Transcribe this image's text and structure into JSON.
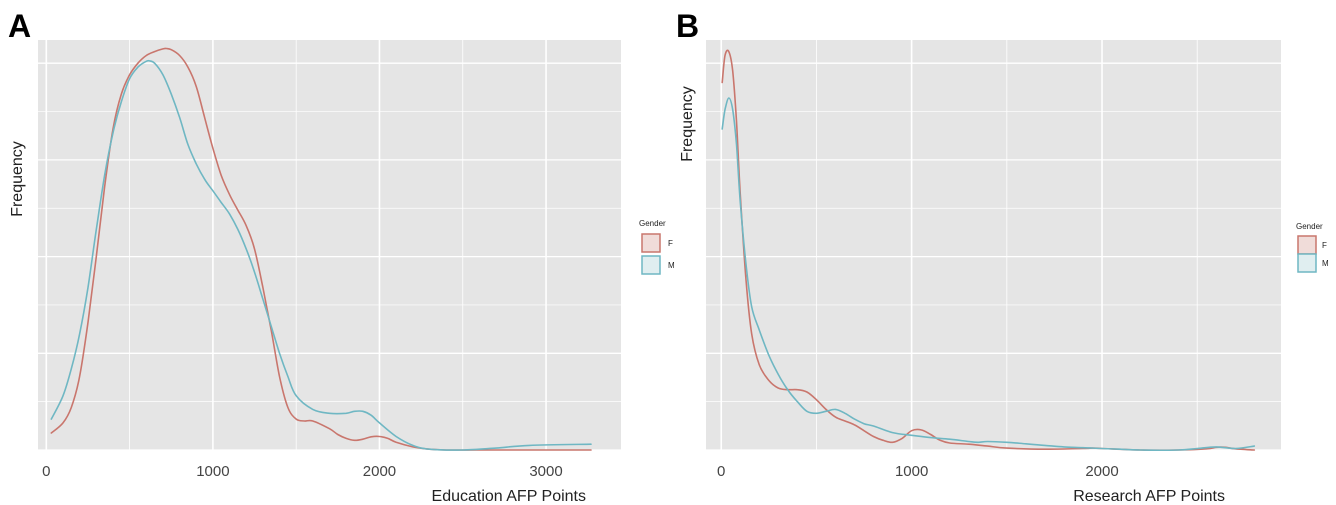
{
  "chart_data": [
    {
      "panel": "A",
      "type": "line",
      "title": "",
      "xlabel": "Education AFP Points",
      "ylabel": "Frequency",
      "xlim": [
        -50,
        3450
      ],
      "ylim": [
        0,
        1.06
      ],
      "xticks": [
        0,
        1000,
        2000,
        3000
      ],
      "y_tick_labels_shown": false,
      "grid": true,
      "legend": {
        "title": "Gender",
        "entries": [
          "F",
          "M"
        ],
        "placement": "right"
      },
      "series": [
        {
          "name": "F",
          "color": "#c9766d",
          "x": [
            30,
            100,
            150,
            200,
            250,
            300,
            350,
            400,
            450,
            500,
            550,
            600,
            650,
            700,
            720,
            750,
            800,
            850,
            900,
            950,
            1000,
            1050,
            1100,
            1150,
            1200,
            1250,
            1300,
            1350,
            1400,
            1450,
            1500,
            1550,
            1600,
            1700,
            1750,
            1800,
            1850,
            1900,
            1950,
            2000,
            2050,
            2100,
            2200,
            2300,
            2400,
            2600,
            2800,
            3000,
            3270
          ],
          "values": [
            0.044,
            0.07,
            0.11,
            0.19,
            0.33,
            0.5,
            0.68,
            0.83,
            0.92,
            0.97,
            1.0,
            1.02,
            1.03,
            1.037,
            1.038,
            1.035,
            1.02,
            0.99,
            0.94,
            0.86,
            0.78,
            0.71,
            0.66,
            0.62,
            0.58,
            0.52,
            0.42,
            0.31,
            0.19,
            0.11,
            0.08,
            0.075,
            0.075,
            0.055,
            0.04,
            0.03,
            0.025,
            0.028,
            0.034,
            0.035,
            0.03,
            0.02,
            0.008,
            0.002,
            0.0,
            0.0,
            0.0,
            0.0,
            0.0
          ]
        },
        {
          "name": "M",
          "color": "#6fb7c3",
          "x": [
            30,
            100,
            150,
            200,
            250,
            300,
            350,
            400,
            450,
            500,
            550,
            600,
            620,
            650,
            700,
            750,
            800,
            850,
            900,
            950,
            1000,
            1050,
            1100,
            1150,
            1200,
            1250,
            1300,
            1350,
            1400,
            1450,
            1500,
            1600,
            1700,
            1800,
            1850,
            1900,
            1950,
            2000,
            2100,
            2200,
            2300,
            2500,
            2700,
            2900,
            3270
          ],
          "values": [
            0.08,
            0.14,
            0.21,
            0.3,
            0.42,
            0.57,
            0.71,
            0.82,
            0.9,
            0.96,
            0.99,
            1.005,
            1.006,
            1.0,
            0.97,
            0.92,
            0.86,
            0.79,
            0.74,
            0.7,
            0.67,
            0.64,
            0.61,
            0.57,
            0.52,
            0.46,
            0.39,
            0.32,
            0.25,
            0.19,
            0.14,
            0.105,
            0.095,
            0.095,
            0.1,
            0.1,
            0.09,
            0.07,
            0.035,
            0.012,
            0.002,
            0.0,
            0.005,
            0.012,
            0.015
          ]
        }
      ]
    },
    {
      "panel": "B",
      "type": "line",
      "title": "",
      "xlabel": "Research AFP Points",
      "ylabel": "Frequency",
      "xlim": [
        -80,
        2940
      ],
      "ylim": [
        0,
        1.06
      ],
      "xticks": [
        0,
        1000,
        2000
      ],
      "y_tick_labels_shown": false,
      "grid": true,
      "legend": {
        "title": "Gender",
        "entries": [
          "F",
          "M"
        ],
        "placement": "right"
      },
      "series": [
        {
          "name": "F",
          "color": "#c9766d",
          "x": [
            5,
            20,
            40,
            60,
            80,
            100,
            130,
            160,
            200,
            250,
            300,
            350,
            400,
            450,
            500,
            550,
            600,
            650,
            700,
            750,
            800,
            850,
            900,
            950,
            1000,
            1050,
            1100,
            1150,
            1200,
            1300,
            1400,
            1500,
            1700,
            1900,
            1950,
            2000,
            2200,
            2400,
            2550,
            2600,
            2650,
            2700,
            2800
          ],
          "values": [
            0.95,
            1.02,
            1.03,
            0.98,
            0.85,
            0.66,
            0.44,
            0.3,
            0.22,
            0.18,
            0.16,
            0.156,
            0.156,
            0.15,
            0.13,
            0.105,
            0.085,
            0.075,
            0.065,
            0.05,
            0.035,
            0.025,
            0.02,
            0.03,
            0.05,
            0.052,
            0.04,
            0.025,
            0.018,
            0.015,
            0.01,
            0.005,
            0.002,
            0.004,
            0.005,
            0.004,
            0.0,
            0.0,
            0.003,
            0.007,
            0.007,
            0.003,
            0.0
          ]
        },
        {
          "name": "M",
          "color": "#6fb7c3",
          "x": [
            5,
            20,
            40,
            60,
            80,
            100,
            130,
            160,
            200,
            250,
            300,
            350,
            400,
            450,
            500,
            550,
            600,
            650,
            700,
            750,
            800,
            900,
            1000,
            1100,
            1200,
            1300,
            1350,
            1400,
            1500,
            1600,
            1700,
            1800,
            1900,
            2000,
            2200,
            2400,
            2500,
            2600,
            2700,
            2800
          ],
          "values": [
            0.83,
            0.88,
            0.91,
            0.88,
            0.79,
            0.64,
            0.48,
            0.37,
            0.31,
            0.245,
            0.195,
            0.155,
            0.125,
            0.1,
            0.095,
            0.1,
            0.105,
            0.095,
            0.08,
            0.068,
            0.062,
            0.045,
            0.038,
            0.032,
            0.028,
            0.022,
            0.02,
            0.022,
            0.02,
            0.016,
            0.012,
            0.008,
            0.006,
            0.004,
            0.0,
            0.0,
            0.004,
            0.008,
            0.004,
            0.01
          ]
        }
      ]
    }
  ]
}
